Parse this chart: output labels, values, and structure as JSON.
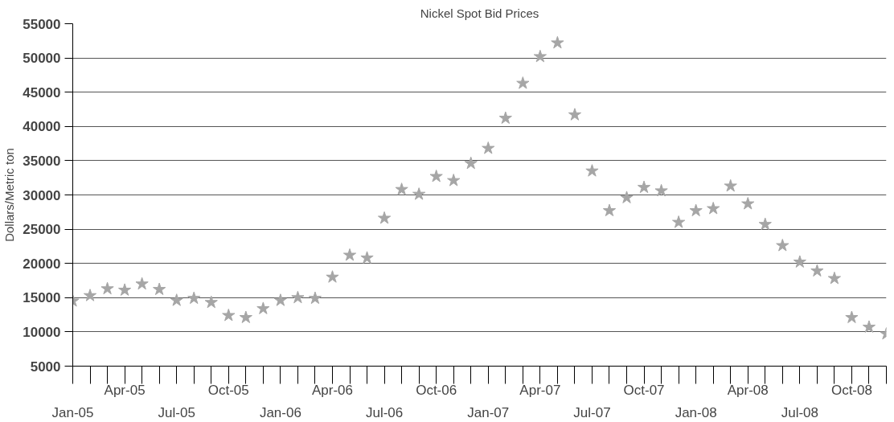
{
  "chart_data": {
    "type": "scatter",
    "title": "Nickel Spot Bid Prices",
    "ylabel": "Dollars/Metric ton",
    "categories": [
      "Jan-05",
      null,
      null,
      "Apr-05",
      null,
      null,
      "Jul-05",
      null,
      null,
      "Oct-05",
      null,
      null,
      "Jan-06",
      null,
      null,
      "Apr-06",
      null,
      null,
      "Jul-06",
      null,
      null,
      "Oct-06",
      null,
      null,
      "Jan-07",
      null,
      null,
      "Apr-07",
      null,
      null,
      "Jul-07",
      null,
      null,
      "Oct-07",
      null,
      null,
      "Jan-08",
      null,
      null,
      "Apr-08",
      null,
      null,
      "Jul-08",
      null,
      null,
      "Oct-08",
      null,
      null
    ],
    "series": [
      {
        "color": "#a6a6a6",
        "values": [
          14500,
          15300,
          16300,
          16100,
          17000,
          16200,
          14600,
          14900,
          14300,
          12400,
          12100,
          13400,
          14600,
          15000,
          14900,
          18000,
          21200,
          20800,
          26600,
          30800,
          30100,
          32700,
          32100,
          34600,
          36800,
          41200,
          46300,
          50200,
          52200,
          41700,
          33500,
          27700,
          29600,
          31100,
          30600,
          26000,
          27700,
          28000,
          31300,
          28700,
          25700,
          22600,
          20200,
          18900,
          17800,
          12100,
          10700,
          9700
        ]
      }
    ],
    "ylim": [
      5000,
      55000
    ],
    "yticks": [
      5000,
      10000,
      15000,
      20000,
      25000,
      30000,
      35000,
      40000,
      45000,
      50000,
      55000
    ],
    "grid": "y",
    "marker": "star"
  }
}
